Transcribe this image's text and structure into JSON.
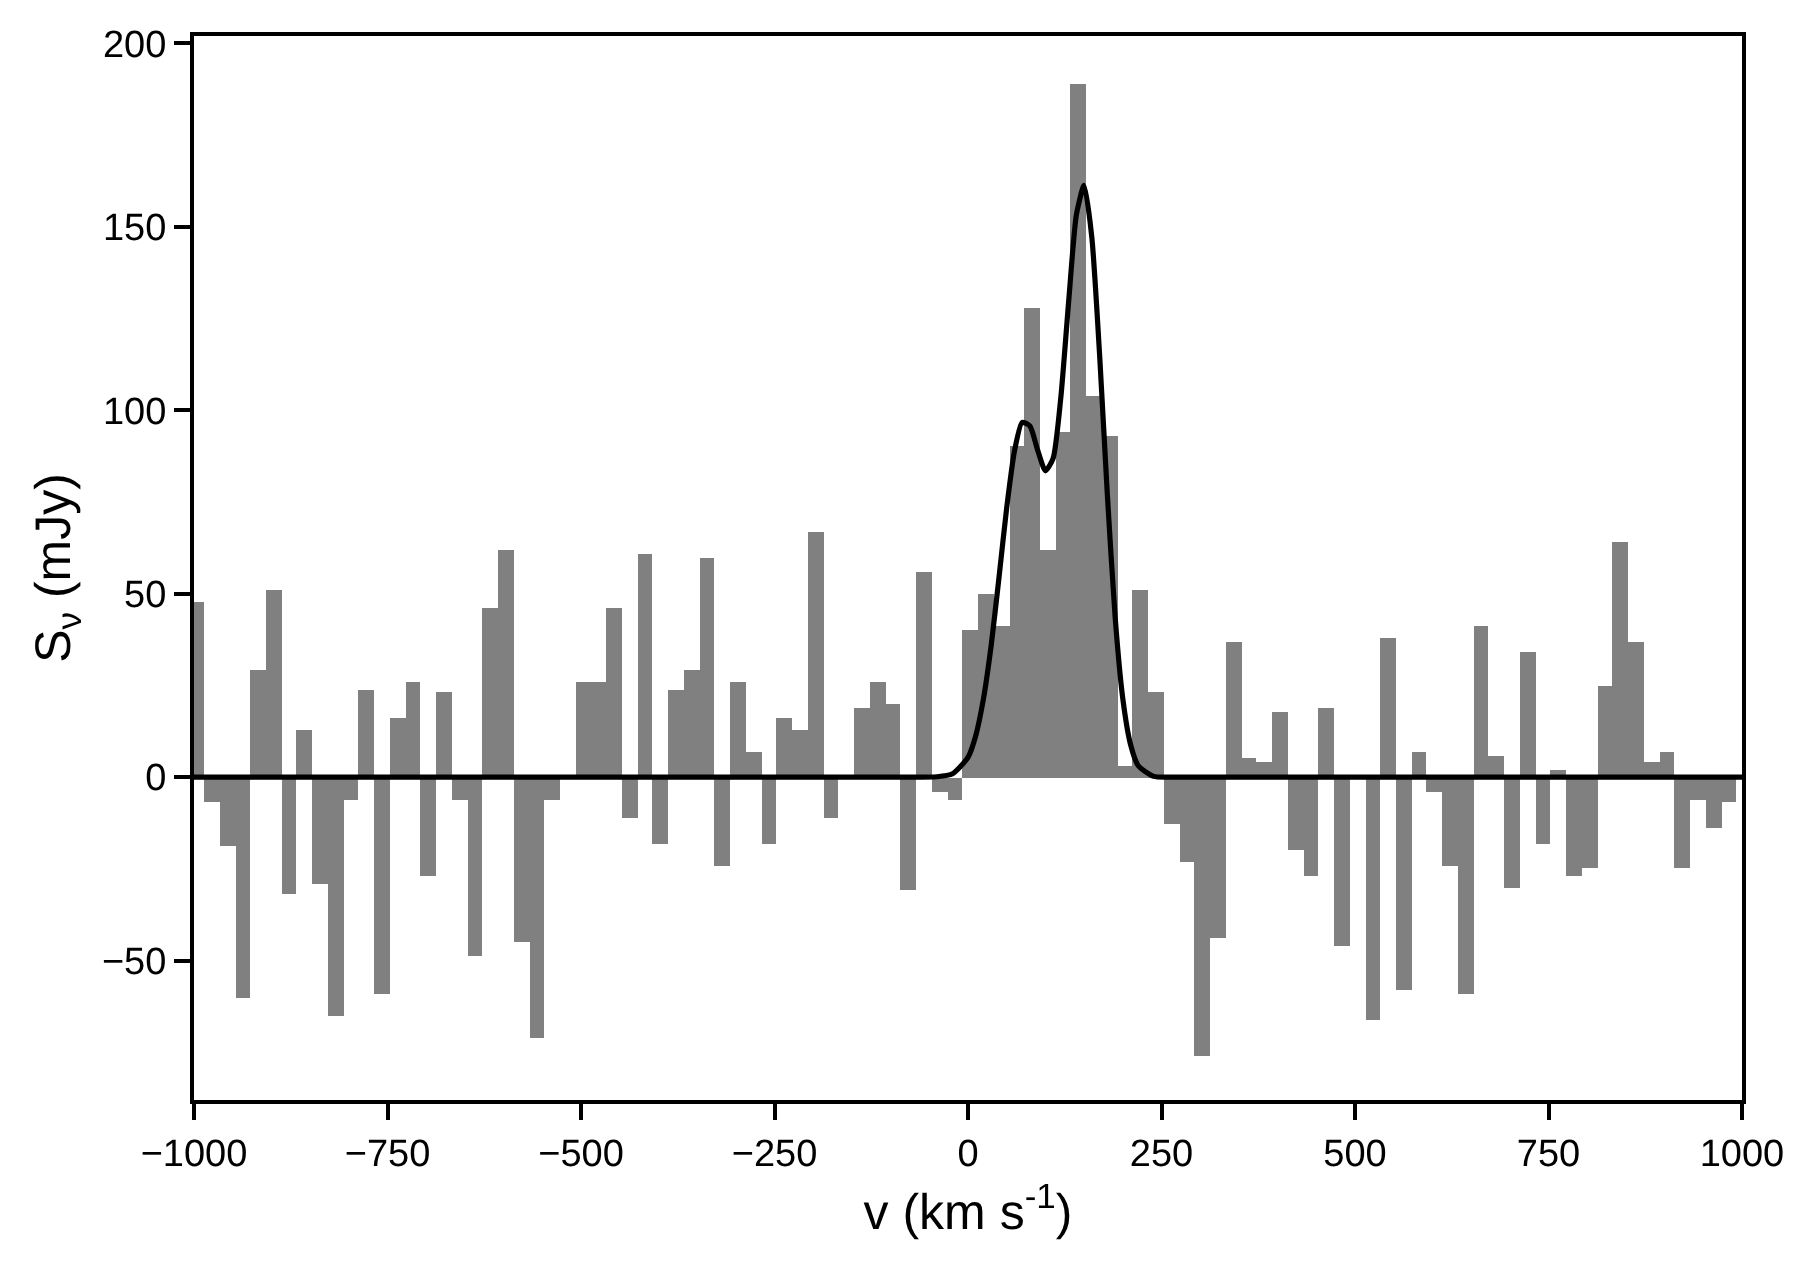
{
  "chart_data": {
    "type": "bar",
    "xlabel": "v (km s$^{-1}$)",
    "ylabel": "S$_{ν}$ (mJy)",
    "x": [
      -997,
      -977,
      -957,
      -937,
      -917,
      -897,
      -877,
      -857,
      -837,
      -817,
      -797,
      -777,
      -757,
      -737,
      -717,
      -697,
      -677,
      -657,
      -637,
      -617,
      -597,
      -577,
      -557,
      -537,
      -517,
      -497,
      -477,
      -457,
      -437,
      -417,
      -397,
      -377,
      -357,
      -337,
      -317,
      -297,
      -277,
      -257,
      -237,
      -217,
      -197,
      -177,
      -157,
      -137,
      -117,
      -97,
      -77,
      -57,
      -37,
      -17,
      3,
      23,
      43,
      63,
      83,
      103,
      123,
      143,
      163,
      183,
      203,
      223,
      243,
      263,
      283,
      303,
      323,
      343,
      363,
      383,
      403,
      423,
      443,
      463,
      483,
      503,
      523,
      543,
      563,
      583,
      603,
      623,
      643,
      663,
      683,
      703,
      723,
      743,
      763,
      783,
      803,
      823,
      843,
      863,
      883,
      903,
      923,
      943,
      963,
      983
    ],
    "series": [
      {
        "color": "#808080",
        "values": [
          48,
          -7,
          -19,
          -60,
          29,
          51,
          -32,
          13,
          -29,
          -65,
          -6,
          24,
          -59,
          16,
          26,
          -27,
          23,
          -6,
          -49,
          46,
          62,
          -45,
          -71,
          -6,
          0,
          26,
          26,
          46,
          -11,
          61,
          -18,
          24,
          29,
          60,
          -24,
          26,
          7,
          -18,
          16,
          13,
          67,
          -11,
          0,
          19,
          26,
          20,
          -31,
          56,
          -4,
          -6,
          40,
          50,
          41,
          90,
          128,
          62,
          94,
          189,
          104,
          93,
          3,
          51,
          23,
          -13,
          -23,
          -76,
          -44,
          37,
          5,
          4,
          18,
          -20,
          -27,
          19,
          -46,
          0,
          -66,
          38,
          -58,
          7,
          -4,
          -24,
          -59,
          41,
          6,
          -30,
          34,
          -18,
          2,
          -27,
          -25,
          25,
          64,
          37,
          4,
          7,
          -25,
          -6,
          -14,
          -7
        ]
      },
      {
        "type": "line",
        "color": "#000000",
        "x": [
          -1000,
          -100,
          -40,
          -20,
          0,
          10,
          20,
          30,
          40,
          50,
          60,
          70,
          80,
          90,
          100,
          110,
          120,
          130,
          140,
          150,
          160,
          170,
          180,
          190,
          200,
          210,
          220,
          240,
          260,
          1000
        ],
        "values": [
          0,
          0,
          0.1,
          0.9,
          5.4,
          11.3,
          21.4,
          36,
          54.3,
          73.4,
          88.8,
          96.7,
          95.7,
          89.1,
          83.5,
          86.9,
          103.6,
          129.5,
          153.2,
          161.3,
          147.1,
          115.2,
          77.1,
          43.9,
          21.4,
          8.9,
          3.1,
          0.2,
          0,
          0
        ]
      }
    ],
    "xlim": [
      -1000,
      1000
    ],
    "xticks": [
      {
        "value": -1000,
        "label": "−1000"
      },
      {
        "value": -750,
        "label": "−750"
      },
      {
        "value": -500,
        "label": "−500"
      },
      {
        "value": -250,
        "label": "−250"
      },
      0,
      250,
      500,
      750,
      1000
    ],
    "ylim": [
      -88,
      202
    ],
    "yticks": [
      {
        "value": -50,
        "label": "−50"
      },
      0,
      50,
      100,
      150,
      200
    ]
  }
}
